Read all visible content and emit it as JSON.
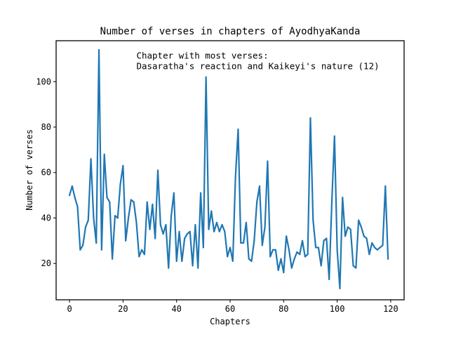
{
  "chart_data": {
    "type": "line",
    "title": "Number of verses in chapters of AyodhyaKanda",
    "xlabel": "Chapters",
    "ylabel": "Number of verses",
    "xlim": [
      -5,
      125
    ],
    "ylim": [
      4,
      118
    ],
    "x_ticks": [
      0,
      20,
      40,
      60,
      80,
      100,
      120
    ],
    "y_ticks": [
      20,
      40,
      60,
      80,
      100
    ],
    "grid": false,
    "annotation": {
      "line1": "Chapter with most verses:",
      "line2": "Dasaratha's reaction and Kaikeyi's nature (12)",
      "x": 25,
      "y": 111
    },
    "series": [
      {
        "color": "#1f77b4",
        "x": [
          0,
          1,
          2,
          3,
          4,
          5,
          6,
          7,
          8,
          9,
          10,
          11,
          12,
          13,
          14,
          15,
          16,
          17,
          18,
          19,
          20,
          21,
          22,
          23,
          24,
          25,
          26,
          27,
          28,
          29,
          30,
          31,
          32,
          33,
          34,
          35,
          36,
          37,
          38,
          39,
          40,
          41,
          42,
          43,
          44,
          45,
          46,
          47,
          48,
          49,
          50,
          51,
          52,
          53,
          54,
          55,
          56,
          57,
          58,
          59,
          60,
          61,
          62,
          63,
          64,
          65,
          66,
          67,
          68,
          69,
          70,
          71,
          72,
          73,
          74,
          75,
          76,
          77,
          78,
          79,
          80,
          81,
          82,
          83,
          84,
          85,
          86,
          87,
          88,
          89,
          90,
          91,
          92,
          93,
          94,
          95,
          96,
          97,
          98,
          99,
          100,
          101,
          102,
          103,
          104,
          105,
          106,
          107,
          108,
          109,
          110,
          111,
          112,
          113,
          114,
          115,
          116,
          117,
          118,
          119
        ],
        "values": [
          50,
          54,
          49,
          45,
          26,
          28,
          36,
          39,
          66,
          40,
          29,
          114,
          26,
          68,
          49,
          47,
          22,
          41,
          40,
          55,
          63,
          30,
          40,
          48,
          47,
          38,
          23,
          26,
          24,
          47,
          35,
          46,
          31,
          61,
          37,
          33,
          37,
          18,
          41,
          51,
          21,
          34,
          21,
          31,
          33,
          34,
          19,
          37,
          18,
          51,
          27,
          102,
          35,
          43,
          34,
          38,
          34,
          37,
          34,
          23,
          27,
          21,
          58,
          79,
          29,
          29,
          38,
          22,
          21,
          30,
          47,
          54,
          28,
          36,
          65,
          23,
          26,
          26,
          17,
          22,
          16,
          32,
          26,
          18,
          22,
          25,
          24,
          30,
          23,
          24,
          84,
          39,
          27,
          27,
          19,
          30,
          31,
          13,
          47,
          76,
          26,
          9,
          49,
          32,
          36,
          35,
          19,
          18,
          39,
          36,
          32,
          31,
          24,
          29,
          27,
          26,
          27,
          28,
          54,
          22
        ]
      }
    ]
  }
}
